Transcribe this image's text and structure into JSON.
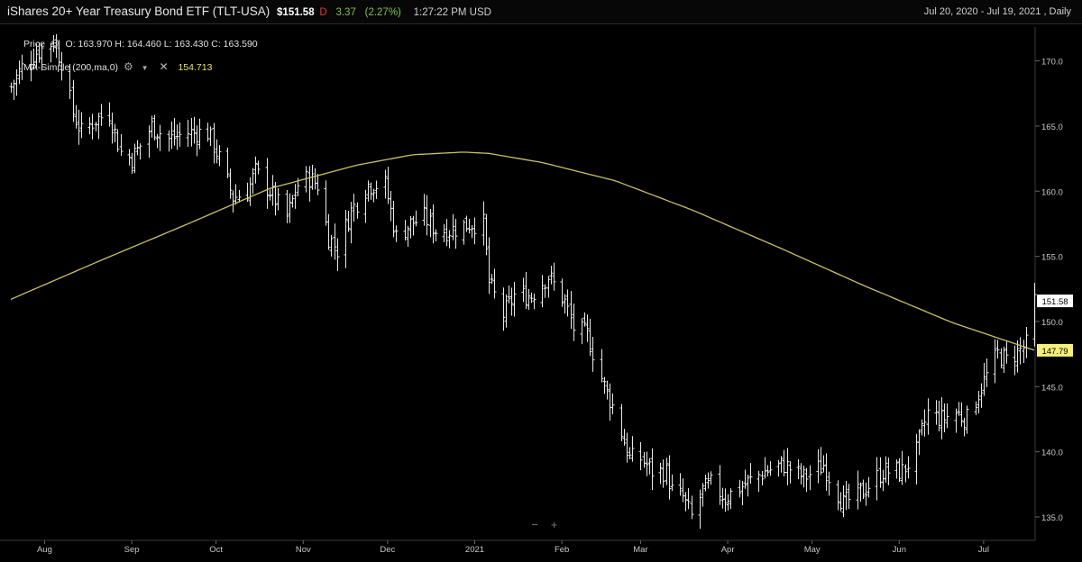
{
  "header": {
    "instrument": "iShares 20+ Year Treasury Bond ETF  (TLT-USA)",
    "last_price": "$151.58",
    "flag": "D",
    "change": "3.37",
    "change_pct": "(2.27%)",
    "time": "1:27:22 PM USD",
    "date_range": "Jul 20, 2020 - Jul 19, 2021 , Daily"
  },
  "legend": {
    "price_label": "Price",
    "ohlc": "O: 163.970  H: 164.460  L: 163.430  C: 163.590",
    "ma_label": "MA-Simple (200,ma,0)",
    "ma_value": "154.713",
    "settings_icon": "gear-icon",
    "dropdown_icon": "chevron-down-icon",
    "close_icon": "close-icon"
  },
  "zoom": {
    "minus": "−",
    "plus": "+"
  },
  "colors": {
    "background": "#000000",
    "bars": "#e8e8e8",
    "ma_line": "#c9c165",
    "axis_text": "#c8c8c8",
    "last_price_tag_bg": "#ffffff",
    "ma_tag_bg": "#f5f07a"
  },
  "chart_data": {
    "type": "ohlc",
    "y_axis": {
      "ticks": [
        135.0,
        140.0,
        145.0,
        150.0,
        155.0,
        160.0,
        165.0,
        170.0
      ],
      "range": [
        133.2,
        172.6
      ]
    },
    "x_axis": {
      "tick_labels": [
        "Aug",
        "Sep",
        "Oct",
        "Nov",
        "Dec",
        "2021",
        "Feb",
        "Mar",
        "Apr",
        "May",
        "Jun",
        "Jul"
      ]
    },
    "last_price_tag": "151.58",
    "ma_tag": "147.79",
    "price_close_anchors": [
      [
        "2020-07-20",
        168.0
      ],
      [
        "2020-07-24",
        169.5
      ],
      [
        "2020-07-28",
        170.5
      ],
      [
        "2020-08-04",
        171.5
      ],
      [
        "2020-08-07",
        170.0
      ],
      [
        "2020-08-11",
        166.0
      ],
      [
        "2020-08-14",
        164.5
      ],
      [
        "2020-08-19",
        165.5
      ],
      [
        "2020-08-24",
        166.0
      ],
      [
        "2020-08-28",
        163.0
      ],
      [
        "2020-09-01",
        162.5
      ],
      [
        "2020-09-04",
        163.5
      ],
      [
        "2020-09-08",
        165.0
      ],
      [
        "2020-09-14",
        164.0
      ],
      [
        "2020-09-21",
        164.5
      ],
      [
        "2020-09-28",
        164.5
      ],
      [
        "2020-10-02",
        162.5
      ],
      [
        "2020-10-07",
        159.5
      ],
      [
        "2020-10-12",
        160.0
      ],
      [
        "2020-10-15",
        161.5
      ],
      [
        "2020-10-20",
        160.0
      ],
      [
        "2020-10-26",
        158.0
      ],
      [
        "2020-10-30",
        160.5
      ],
      [
        "2020-11-03",
        161.0
      ],
      [
        "2020-11-06",
        160.5
      ],
      [
        "2020-11-10",
        156.5
      ],
      [
        "2020-11-13",
        155.5
      ],
      [
        "2020-11-18",
        158.5
      ],
      [
        "2020-11-24",
        160.5
      ],
      [
        "2020-11-30",
        160.5
      ],
      [
        "2020-12-04",
        156.5
      ],
      [
        "2020-12-09",
        157.5
      ],
      [
        "2020-12-14",
        158.0
      ],
      [
        "2020-12-18",
        157.0
      ],
      [
        "2020-12-23",
        157.0
      ],
      [
        "2020-12-30",
        157.5
      ],
      [
        "2021-01-04",
        157.5
      ],
      [
        "2021-01-06",
        153.0
      ],
      [
        "2021-01-11",
        150.5
      ],
      [
        "2021-01-15",
        152.0
      ],
      [
        "2021-01-21",
        152.0
      ],
      [
        "2021-01-27",
        153.5
      ],
      [
        "2021-02-02",
        151.5
      ],
      [
        "2021-02-05",
        149.5
      ],
      [
        "2021-02-10",
        149.0
      ],
      [
        "2021-02-16",
        145.0
      ],
      [
        "2021-02-19",
        143.5
      ],
      [
        "2021-02-25",
        139.5
      ],
      [
        "2021-03-01",
        139.5
      ],
      [
        "2021-03-05",
        138.5
      ],
      [
        "2021-03-10",
        138.5
      ],
      [
        "2021-03-12",
        137.0
      ],
      [
        "2021-03-16",
        136.5
      ],
      [
        "2021-03-19",
        135.0
      ],
      [
        "2021-03-23",
        137.0
      ],
      [
        "2021-03-26",
        137.5
      ],
      [
        "2021-03-31",
        136.5
      ],
      [
        "2021-04-07",
        137.5
      ],
      [
        "2021-04-14",
        138.5
      ],
      [
        "2021-04-21",
        139.0
      ],
      [
        "2021-04-28",
        138.0
      ],
      [
        "2021-05-05",
        139.0
      ],
      [
        "2021-05-12",
        136.0
      ],
      [
        "2021-05-19",
        137.0
      ],
      [
        "2021-05-26",
        138.5
      ],
      [
        "2021-06-02",
        138.5
      ],
      [
        "2021-06-07",
        140.0
      ],
      [
        "2021-06-11",
        143.0
      ],
      [
        "2021-06-16",
        142.5
      ],
      [
        "2021-06-21",
        143.0
      ],
      [
        "2021-06-25",
        142.5
      ],
      [
        "2021-06-30",
        145.0
      ],
      [
        "2021-07-06",
        147.5
      ],
      [
        "2021-07-09",
        147.0
      ],
      [
        "2021-07-15",
        148.0
      ],
      [
        "2021-07-16",
        148.2
      ],
      [
        "2021-07-19",
        151.6
      ]
    ],
    "ma_anchors": [
      [
        "2020-07-20",
        151.7
      ],
      [
        "2020-08-20",
        154.6
      ],
      [
        "2020-09-20",
        157.4
      ],
      [
        "2020-10-20",
        160.2
      ],
      [
        "2020-11-20",
        162.0
      ],
      [
        "2020-12-10",
        162.8
      ],
      [
        "2020-12-28",
        163.0
      ],
      [
        "2021-01-06",
        162.9
      ],
      [
        "2021-01-25",
        162.2
      ],
      [
        "2021-02-20",
        160.8
      ],
      [
        "2021-03-20",
        158.5
      ],
      [
        "2021-04-20",
        155.6
      ],
      [
        "2021-05-20",
        152.7
      ],
      [
        "2021-06-20",
        149.9
      ],
      [
        "2021-07-19",
        147.8
      ]
    ]
  }
}
